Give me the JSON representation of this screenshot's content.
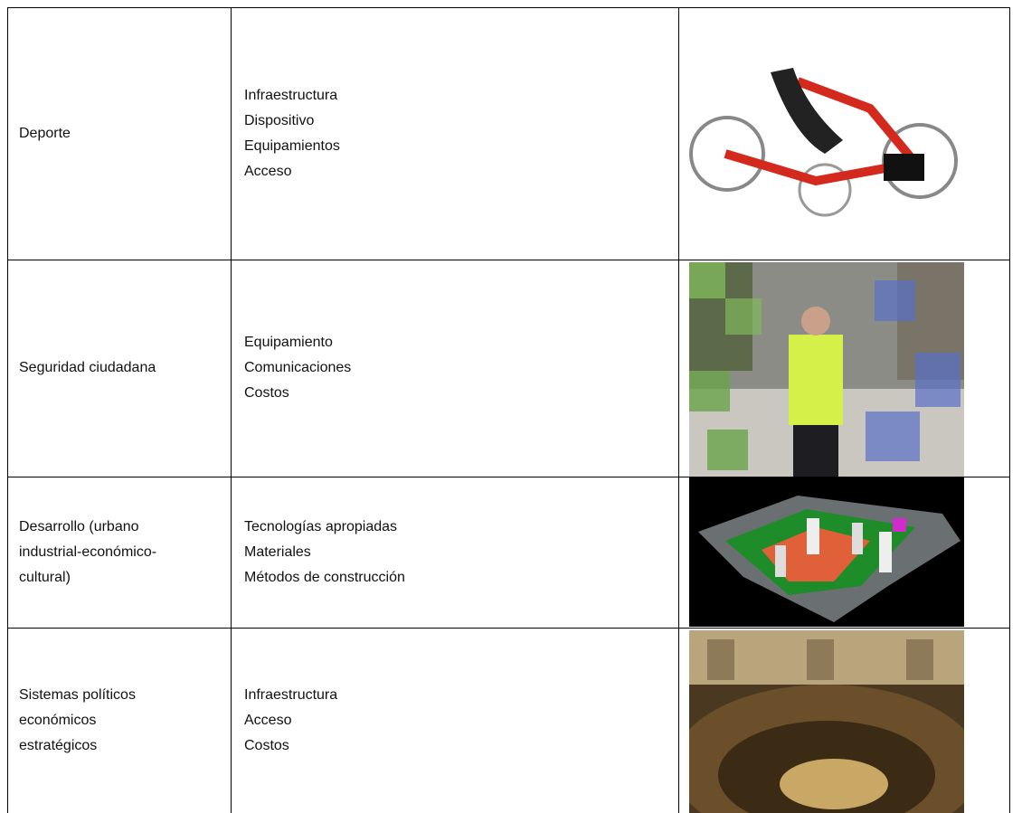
{
  "table": {
    "rows": [
      {
        "category": [
          "Deporte"
        ],
        "items": [
          "Infraestructura",
          "Dispositivo",
          "Equipamientos",
          "Acceso"
        ]
      },
      {
        "category": [
          "Seguridad ciudadana"
        ],
        "items": [
          "Equipamiento",
          "Comunicaciones",
          "Costos"
        ]
      },
      {
        "category": [
          "Desarrollo (urbano",
          "industrial-económico-",
          "cultural)"
        ],
        "items": [
          "Tecnologías apropiadas",
          "Materiales",
          "Métodos de construcción"
        ]
      },
      {
        "category": [
          "Sistemas políticos",
          "económicos",
          "estratégicos"
        ],
        "items": [
          "Infraestructura",
          "Acceso",
          "Costos"
        ]
      }
    ]
  }
}
